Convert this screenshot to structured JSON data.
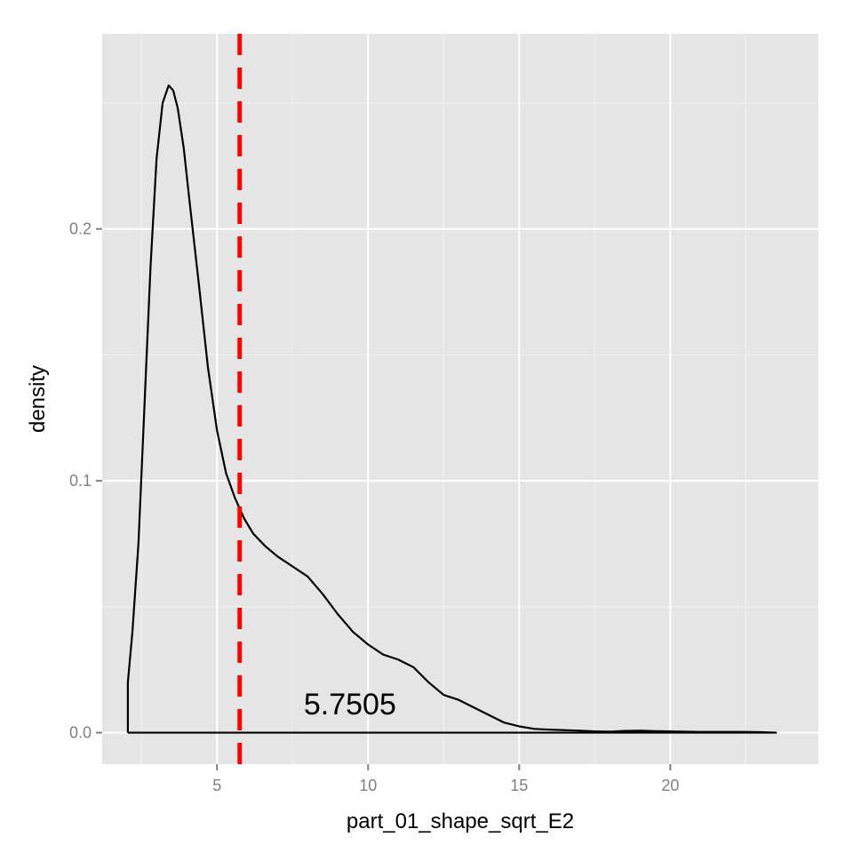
{
  "chart_data": {
    "type": "area",
    "xlabel": "part_01_shape_sqrt_E2",
    "ylabel": "density",
    "xlim": [
      1.2,
      24.9
    ],
    "ylim": [
      -0.0125,
      0.2775
    ],
    "x_ticks": [
      5,
      10,
      15,
      20
    ],
    "x_tick_labels": [
      "5",
      "10",
      "15",
      "20"
    ],
    "y_ticks": [
      0.0,
      0.1,
      0.2
    ],
    "y_tick_labels": [
      "0.0",
      "0.1",
      "0.2"
    ],
    "grid": true,
    "background": "#e5e5e5",
    "grid_color": "#ffffff",
    "series": [
      {
        "line_color": "#000000",
        "x": [
          2.05,
          2.05,
          2.2,
          2.4,
          2.6,
          2.8,
          3.0,
          3.2,
          3.4,
          3.55,
          3.7,
          3.9,
          4.1,
          4.4,
          4.7,
          5.0,
          5.3,
          5.6,
          5.9,
          6.2,
          6.6,
          7.0,
          7.5,
          8.0,
          8.5,
          9.0,
          9.5,
          10.0,
          10.5,
          11.0,
          11.5,
          12.0,
          12.5,
          13.0,
          13.5,
          14.0,
          14.5,
          15.0,
          15.5,
          16.0,
          16.5,
          17.0,
          17.5,
          18.0,
          18.5,
          19.0,
          19.5,
          20.0,
          20.5,
          21.0,
          21.5,
          22.0,
          22.5,
          23.0,
          23.5,
          23.5,
          2.05
        ],
        "y": [
          0.0,
          0.02,
          0.04,
          0.075,
          0.13,
          0.185,
          0.228,
          0.25,
          0.257,
          0.255,
          0.248,
          0.232,
          0.21,
          0.178,
          0.145,
          0.12,
          0.103,
          0.093,
          0.085,
          0.079,
          0.074,
          0.07,
          0.066,
          0.062,
          0.055,
          0.047,
          0.04,
          0.035,
          0.031,
          0.029,
          0.026,
          0.02,
          0.015,
          0.013,
          0.01,
          0.007,
          0.004,
          0.0025,
          0.0015,
          0.0012,
          0.001,
          0.0008,
          0.0005,
          0.0004,
          0.0007,
          0.0008,
          0.0006,
          0.0005,
          0.0004,
          0.0003,
          0.0003,
          0.0003,
          0.0003,
          0.0002,
          0.0,
          0.0,
          0.0
        ]
      }
    ],
    "vline": {
      "x": 5.7505,
      "color": "#ff0000",
      "style": "dashed"
    },
    "annotations": [
      {
        "text": "5.7505",
        "x": 9.4,
        "y": 0.0115
      }
    ]
  }
}
